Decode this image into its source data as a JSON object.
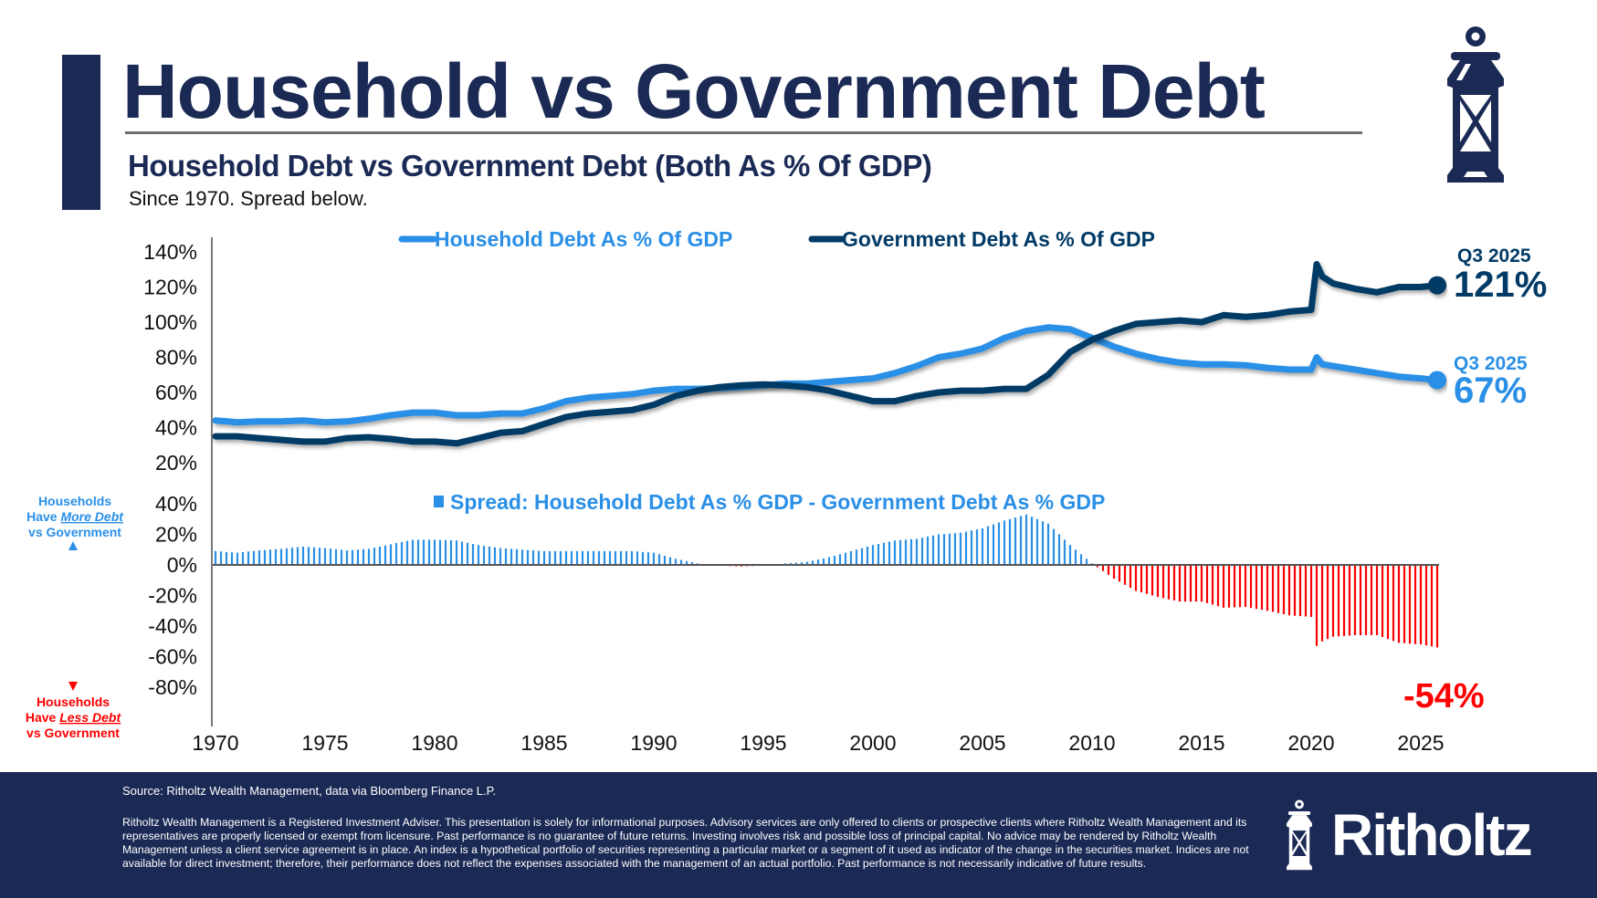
{
  "header": {
    "title": "Household vs Government Debt",
    "subtitle": "Household Debt vs Government Debt (Both As % Of GDP)",
    "caption": "Since 1970. Spread below."
  },
  "footer": {
    "source": "Source: Ritholtz Wealth Management, data via Bloomberg Finance L.P.",
    "disclaimer": "Ritholtz Wealth Management is a Registered Investment Adviser. This presentation is solely for informational purposes. Advisory services are only offered to clients or prospective clients where Ritholtz Wealth Management and its representatives are properly licensed or exempt from licensure. Past performance is no guarantee of future returns. Investing involves risk and possible loss of principal capital. No advice may be rendered by Ritholtz Wealth Management unless a client service agreement is in place. An index is a hypothetical portfolio of securities representing a particular market or a segment of it used as indicator of the change in the securities market. Indices are not available for direct investment; therefore, their performance does not reflect the expenses associated with the management of an actual portfolio. Past performance is not necessarily indicative of future results.",
    "brand": "Ritholtz",
    "logo_icon": "lantern-icon"
  },
  "colors": {
    "navy": "#1b2a55",
    "household": "#2a8fe6",
    "government": "#003a66",
    "negative": "#ff0000"
  },
  "chart_data": [
    {
      "type": "line",
      "title": "Household Debt vs Government Debt (Both As % Of GDP)",
      "xlabel": "",
      "ylabel": "",
      "xlim": [
        1970,
        2025.75
      ],
      "ylim": [
        20,
        140
      ],
      "y_ticks": [
        "140%",
        "120%",
        "100%",
        "80%",
        "60%",
        "40%",
        "20%"
      ],
      "y_tick_values": [
        140,
        120,
        100,
        80,
        60,
        40,
        20
      ],
      "x_ticks": [
        "1970",
        "1975",
        "1980",
        "1985",
        "1990",
        "1995",
        "2000",
        "2005",
        "2010",
        "2015",
        "2020",
        "2025"
      ],
      "x_tick_values": [
        1970,
        1975,
        1980,
        1985,
        1990,
        1995,
        2000,
        2005,
        2010,
        2015,
        2020,
        2025
      ],
      "legend_position": "top",
      "x": [
        1970,
        1971,
        1972,
        1973,
        1974,
        1975,
        1976,
        1977,
        1978,
        1979,
        1980,
        1981,
        1982,
        1983,
        1984,
        1985,
        1986,
        1987,
        1988,
        1989,
        1990,
        1991,
        1992,
        1993,
        1994,
        1995,
        1996,
        1997,
        1998,
        1999,
        2000,
        2001,
        2002,
        2003,
        2004,
        2005,
        2006,
        2007,
        2008,
        2009,
        2010,
        2011,
        2012,
        2013,
        2014,
        2015,
        2016,
        2017,
        2018,
        2019,
        2020,
        2020.25,
        2020.5,
        2021,
        2022,
        2023,
        2024,
        2025,
        2025.75
      ],
      "series": [
        {
          "name": "Household Debt As % Of GDP",
          "values": [
            44,
            43,
            43.5,
            43.5,
            44,
            43,
            43.5,
            45,
            47,
            48.5,
            48.5,
            47,
            47,
            48,
            48,
            51,
            55,
            57,
            58,
            59,
            61,
            62,
            62,
            62.5,
            63,
            64,
            65,
            65,
            66,
            67,
            68,
            71,
            75,
            80,
            82,
            85,
            91,
            95,
            97,
            96,
            91,
            86,
            82,
            79,
            77,
            76,
            76,
            75.5,
            74,
            73,
            73,
            80,
            76,
            75,
            73,
            71,
            69,
            68,
            67
          ],
          "end_label": "Q3 2025",
          "end_value": "67%"
        },
        {
          "name": "Government Debt As % Of GDP",
          "values": [
            35,
            35,
            34,
            33,
            32,
            32,
            34,
            34.5,
            33.5,
            32,
            32,
            31,
            34,
            37,
            38,
            42,
            46,
            48,
            49,
            50,
            53,
            58,
            61,
            63,
            64,
            64.5,
            64,
            63,
            61,
            58,
            55,
            55,
            58,
            60,
            61,
            61,
            62,
            62,
            70,
            83,
            90,
            95,
            99,
            100,
            101,
            100,
            104,
            103,
            104,
            106,
            107,
            133,
            126,
            122,
            119,
            117,
            120,
            120,
            121
          ],
          "end_label": "Q3 2025",
          "end_value": "121%"
        }
      ]
    },
    {
      "type": "bar",
      "title": "Spread: Household Debt As % GDP - Government Debt As % GDP",
      "ylim": [
        -80,
        40
      ],
      "y_ticks": [
        "40%",
        "20%",
        "0%",
        "-20%",
        "-40%",
        "-60%",
        "-80%"
      ],
      "y_tick_values": [
        40,
        20,
        0,
        -20,
        -40,
        -60,
        -80
      ],
      "bar_frequency": "quarterly",
      "x": [
        1970,
        1971,
        1972,
        1973,
        1974,
        1975,
        1976,
        1977,
        1978,
        1979,
        1980,
        1981,
        1982,
        1983,
        1984,
        1985,
        1986,
        1987,
        1988,
        1989,
        1990,
        1991,
        1992,
        1993,
        1994,
        1995,
        1996,
        1997,
        1998,
        1999,
        2000,
        2001,
        2002,
        2003,
        2004,
        2005,
        2006,
        2007,
        2008,
        2009,
        2010,
        2011,
        2012,
        2013,
        2014,
        2015,
        2016,
        2017,
        2018,
        2019,
        2020,
        2020.25,
        2020.5,
        2021,
        2022,
        2023,
        2024,
        2025,
        2025.75
      ],
      "values": [
        9,
        8,
        9.5,
        10.5,
        12,
        11,
        9.5,
        10.5,
        13.5,
        16.5,
        16.5,
        16,
        13,
        11,
        10,
        9,
        9,
        9,
        9,
        9,
        8,
        4,
        1,
        -0.5,
        -1,
        -0.5,
        1,
        2,
        5,
        9,
        13,
        16,
        17,
        20,
        21,
        24,
        29,
        33,
        27,
        13,
        1,
        -9,
        -17,
        -21,
        -24,
        -24,
        -28,
        -27.5,
        -30,
        -33,
        -34,
        -53,
        -50,
        -47,
        -46,
        -46,
        -51,
        -52,
        -54
      ],
      "end_value": "-54%",
      "annotation_top": [
        "Households",
        "Have ",
        "More Debt",
        "vs Government"
      ],
      "annotation_bottom": [
        "Households",
        "Have ",
        "Less Debt",
        "vs Government"
      ]
    }
  ]
}
